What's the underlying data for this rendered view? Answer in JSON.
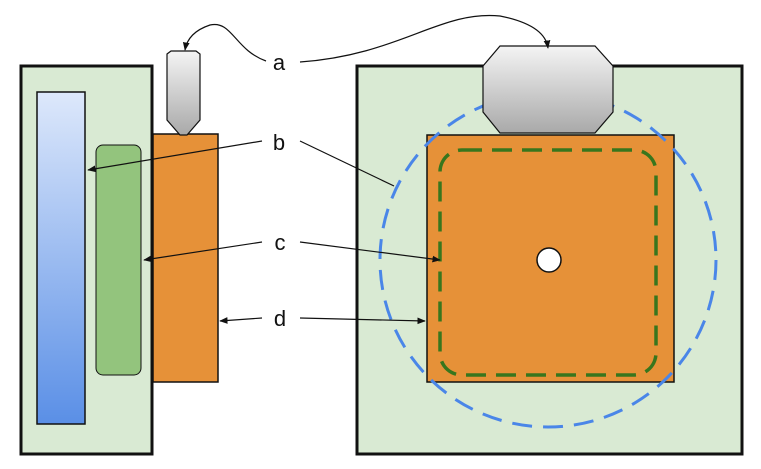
{
  "labels": {
    "a": "a",
    "b": "b",
    "c": "c",
    "d": "d"
  },
  "colors": {
    "background": "#ffffff",
    "outline": "#111111",
    "housing_fill": "#d9ead3",
    "orange_fill": "#e69138",
    "green_fill": "#93c47d",
    "green_dash": "#38761d",
    "blue_dash": "#4a86e8",
    "blue_top": "#dde8fb",
    "blue_bottom": "#5a8fe6",
    "grey_top": "#f4f4f4",
    "grey_bottom": "#a9a9a9",
    "hole_fill": "#ffffff"
  }
}
